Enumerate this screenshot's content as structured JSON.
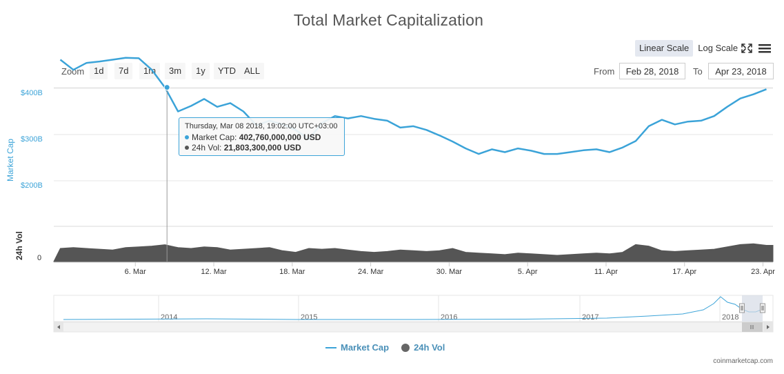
{
  "title": "Total Market Capitalization",
  "scale_buttons": [
    {
      "label": "Linear Scale",
      "active": true
    },
    {
      "label": "Log Scale",
      "active": false
    }
  ],
  "icons": [
    "fullscreen-icon",
    "menu-icon"
  ],
  "zoom": {
    "label": "Zoom",
    "buttons": [
      "1d",
      "7d",
      "1m",
      "3m",
      "1y",
      "YTD",
      "ALL"
    ]
  },
  "range": {
    "from_label": "From",
    "from_value": "Feb 28, 2018",
    "to_label": "To",
    "to_value": "Apr 23, 2018"
  },
  "tooltip": {
    "date": "Thursday, Mar 08 2018, 19:02:00 UTC+03:00",
    "rows": [
      {
        "label": "Market Cap:",
        "value": "402,760,000,000 USD",
        "color": "#3ba3d8"
      },
      {
        "label": "24h Vol:",
        "value": "21,803,300,000 USD",
        "color": "#555555"
      }
    ]
  },
  "legend": [
    {
      "label": "Market Cap",
      "type": "line",
      "color": "#3ba3d8"
    },
    {
      "label": "24h Vol",
      "type": "dot",
      "color": "#666666"
    }
  ],
  "credit": "coinmarketcap.com",
  "colors": {
    "market_cap": "#3ba3d8",
    "volume": "#555555",
    "navigator": "#3ba3d8",
    "navigator_mask": "#d6dbe6"
  },
  "chart_data": {
    "type": "line",
    "title": "Total Market Capitalization",
    "x_range": [
      "2018-02-28",
      "2018-04-23"
    ],
    "x_tick_labels": [
      "6. Mar",
      "12. Mar",
      "18. Mar",
      "24. Mar",
      "30. Mar",
      "5. Apr",
      "11. Apr",
      "17. Apr",
      "23. Apr"
    ],
    "y_axis_market_cap": {
      "label": "Market Cap",
      "tick_labels": [
        "$200B",
        "$300B",
        "$400B"
      ],
      "ticks": [
        200,
        300,
        400
      ],
      "unit": "billion USD"
    },
    "y_axis_volume": {
      "label": "24h Vol",
      "tick_labels": [
        "0"
      ],
      "ticks": [
        0
      ],
      "range": [
        0,
        30
      ],
      "unit": "billion USD"
    },
    "series": [
      {
        "name": "Market Cap",
        "points": [
          [
            "2018-02-28",
            462
          ],
          [
            "2018-03-01",
            440
          ],
          [
            "2018-03-02",
            455
          ],
          [
            "2018-03-03",
            458
          ],
          [
            "2018-03-04",
            462
          ],
          [
            "2018-03-05",
            466
          ],
          [
            "2018-03-06",
            465
          ],
          [
            "2018-03-07",
            440
          ],
          [
            "2018-03-08",
            402
          ],
          [
            "2018-03-09",
            350
          ],
          [
            "2018-03-10",
            362
          ],
          [
            "2018-03-11",
            377
          ],
          [
            "2018-03-12",
            360
          ],
          [
            "2018-03-13",
            368
          ],
          [
            "2018-03-14",
            350
          ],
          [
            "2018-03-15",
            320
          ],
          [
            "2018-03-16",
            330
          ],
          [
            "2018-03-17",
            322
          ],
          [
            "2018-03-18",
            310
          ],
          [
            "2018-03-19",
            290
          ],
          [
            "2018-03-20",
            325
          ],
          [
            "2018-03-21",
            340
          ],
          [
            "2018-03-22",
            335
          ],
          [
            "2018-03-23",
            340
          ],
          [
            "2018-03-24",
            334
          ],
          [
            "2018-03-25",
            330
          ],
          [
            "2018-03-26",
            315
          ],
          [
            "2018-03-27",
            318
          ],
          [
            "2018-03-28",
            310
          ],
          [
            "2018-03-29",
            298
          ],
          [
            "2018-03-30",
            285
          ],
          [
            "2018-03-31",
            270
          ],
          [
            "2018-04-01",
            258
          ],
          [
            "2018-04-02",
            268
          ],
          [
            "2018-04-03",
            262
          ],
          [
            "2018-04-04",
            270
          ],
          [
            "2018-04-05",
            265
          ],
          [
            "2018-04-06",
            258
          ],
          [
            "2018-04-07",
            258
          ],
          [
            "2018-04-08",
            262
          ],
          [
            "2018-04-09",
            266
          ],
          [
            "2018-04-10",
            268
          ],
          [
            "2018-04-11",
            262
          ],
          [
            "2018-04-12",
            272
          ],
          [
            "2018-04-13",
            286
          ],
          [
            "2018-04-14",
            318
          ],
          [
            "2018-04-15",
            332
          ],
          [
            "2018-04-16",
            322
          ],
          [
            "2018-04-17",
            328
          ],
          [
            "2018-04-18",
            330
          ],
          [
            "2018-04-19",
            340
          ],
          [
            "2018-04-20",
            360
          ],
          [
            "2018-04-21",
            378
          ],
          [
            "2018-04-22",
            387
          ],
          [
            "2018-04-23",
            398
          ]
        ]
      },
      {
        "name": "24h Vol",
        "points": [
          [
            "2018-02-28",
            17
          ],
          [
            "2018-03-01",
            18
          ],
          [
            "2018-03-02",
            17
          ],
          [
            "2018-03-03",
            16
          ],
          [
            "2018-03-04",
            15
          ],
          [
            "2018-03-05",
            18
          ],
          [
            "2018-03-06",
            19
          ],
          [
            "2018-03-07",
            20
          ],
          [
            "2018-03-08",
            21.8
          ],
          [
            "2018-03-09",
            18
          ],
          [
            "2018-03-10",
            17
          ],
          [
            "2018-03-11",
            19
          ],
          [
            "2018-03-12",
            18
          ],
          [
            "2018-03-13",
            15
          ],
          [
            "2018-03-14",
            16
          ],
          [
            "2018-03-15",
            17
          ],
          [
            "2018-03-16",
            18
          ],
          [
            "2018-03-17",
            14
          ],
          [
            "2018-03-18",
            12
          ],
          [
            "2018-03-19",
            17
          ],
          [
            "2018-03-20",
            16
          ],
          [
            "2018-03-21",
            17
          ],
          [
            "2018-03-22",
            15
          ],
          [
            "2018-03-23",
            13
          ],
          [
            "2018-03-24",
            12
          ],
          [
            "2018-03-25",
            13
          ],
          [
            "2018-03-26",
            15
          ],
          [
            "2018-03-27",
            14
          ],
          [
            "2018-03-28",
            13
          ],
          [
            "2018-03-29",
            14
          ],
          [
            "2018-03-30",
            17
          ],
          [
            "2018-03-31",
            12
          ],
          [
            "2018-04-01",
            11
          ],
          [
            "2018-04-02",
            10
          ],
          [
            "2018-04-03",
            9
          ],
          [
            "2018-04-04",
            11
          ],
          [
            "2018-04-05",
            10
          ],
          [
            "2018-04-06",
            9
          ],
          [
            "2018-04-07",
            8
          ],
          [
            "2018-04-08",
            9
          ],
          [
            "2018-04-09",
            10
          ],
          [
            "2018-04-10",
            11
          ],
          [
            "2018-04-11",
            10
          ],
          [
            "2018-04-12",
            12
          ],
          [
            "2018-04-13",
            22
          ],
          [
            "2018-04-14",
            20
          ],
          [
            "2018-04-15",
            14
          ],
          [
            "2018-04-16",
            13
          ],
          [
            "2018-04-17",
            14
          ],
          [
            "2018-04-18",
            15
          ],
          [
            "2018-04-19",
            16
          ],
          [
            "2018-04-20",
            19
          ],
          [
            "2018-04-21",
            22
          ],
          [
            "2018-04-22",
            23
          ],
          [
            "2018-04-23",
            21
          ]
        ]
      }
    ],
    "navigator": {
      "year_labels": [
        "2014",
        "2015",
        "2016",
        "2017",
        "2018"
      ],
      "series": "Market Cap (full history)"
    },
    "grid": true,
    "legend_position": "bottom-center"
  }
}
